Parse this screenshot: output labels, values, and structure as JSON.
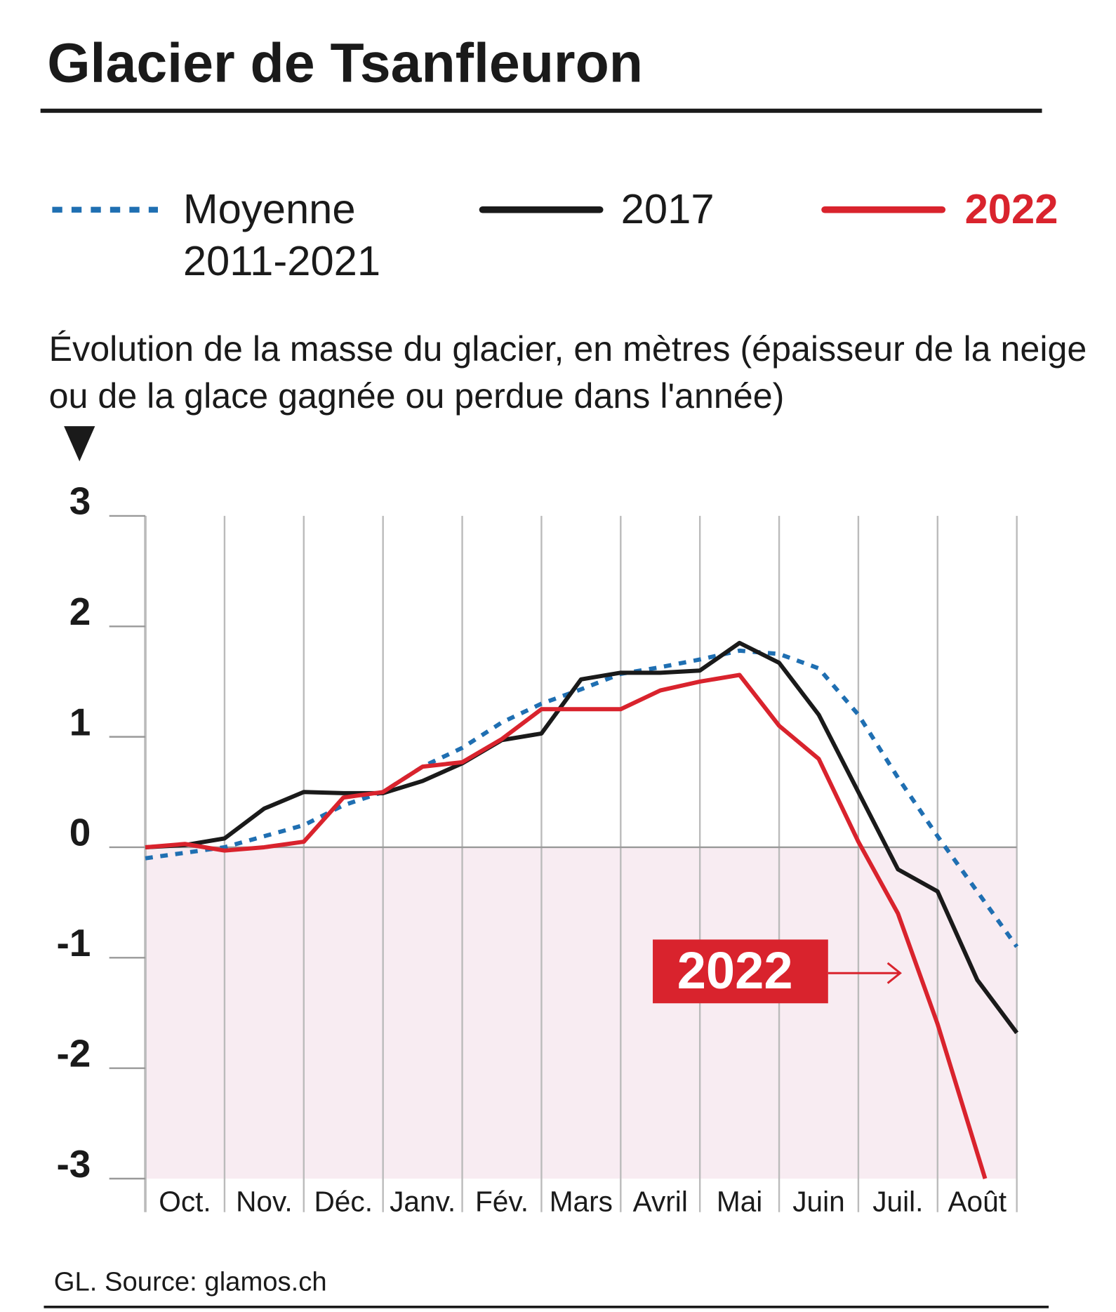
{
  "chart_data": {
    "type": "line",
    "title": "Glacier de Tsanfleuron",
    "subtitle": "Évolution de la masse du glacier, en mètres (épaisseur de la neige ou de la glace gagnée ou perdue dans l'année)",
    "source": "GL. Source: glamos.ch",
    "annotation": "2022",
    "categories": [
      "Oct.",
      "Nov.",
      "Déc.",
      "Janv.",
      "Fév.",
      "Mars",
      "Avril",
      "Mai",
      "Juin",
      "Juil.",
      "Août"
    ],
    "xlim": [
      0,
      11
    ],
    "ylim": [
      -3,
      3
    ],
    "yticks": [
      -3,
      -2,
      -1,
      0,
      1,
      2,
      3
    ],
    "series": [
      {
        "name": "Moyenne 2011-2021",
        "color": "#1f6fb2",
        "dashed": true,
        "x": [
          0,
          0.5,
          1,
          1.5,
          2,
          2.5,
          3,
          3.5,
          4,
          4.5,
          5,
          5.5,
          6,
          6.5,
          7,
          7.5,
          8,
          8.5,
          9,
          9.5,
          10,
          10.5,
          11
        ],
        "values": [
          -0.1,
          -0.05,
          0,
          0.1,
          0.2,
          0.38,
          0.5,
          0.73,
          0.9,
          1.13,
          1.3,
          1.43,
          1.57,
          1.63,
          1.7,
          1.78,
          1.75,
          1.62,
          1.2,
          0.63,
          0.1,
          -0.4,
          -0.9
        ]
      },
      {
        "name": "2017",
        "color": "#1a1a1a",
        "dashed": false,
        "x": [
          0,
          0.5,
          1,
          1.5,
          2,
          2.5,
          3,
          3.5,
          4,
          4.5,
          5,
          5.5,
          6,
          6.5,
          7,
          7.5,
          8,
          8.5,
          9,
          9.5,
          10,
          10.5,
          11
        ],
        "values": [
          0,
          0.02,
          0.08,
          0.35,
          0.5,
          0.49,
          0.49,
          0.6,
          0.76,
          0.97,
          1.03,
          1.52,
          1.58,
          1.58,
          1.6,
          1.85,
          1.67,
          1.2,
          0.5,
          -0.2,
          -0.4,
          -1.2,
          -1.68
        ]
      },
      {
        "name": "2022",
        "color": "#d9232d",
        "dashed": false,
        "x": [
          0,
          0.5,
          1,
          1.5,
          2,
          2.5,
          3,
          3.5,
          4,
          4.5,
          5,
          5.5,
          6,
          6.5,
          7,
          7.5,
          8,
          8.5,
          9,
          9.5,
          10,
          10.6
        ],
        "values": [
          0,
          0.03,
          -0.03,
          0,
          0.05,
          0.45,
          0.5,
          0.73,
          0.77,
          0.98,
          1.25,
          1.25,
          1.25,
          1.42,
          1.5,
          1.56,
          1.1,
          0.8,
          0.05,
          -0.6,
          -1.6,
          -3
        ]
      }
    ]
  }
}
